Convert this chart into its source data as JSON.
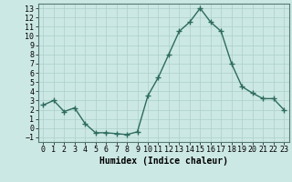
{
  "x": [
    0,
    1,
    2,
    3,
    4,
    5,
    6,
    7,
    8,
    9,
    10,
    11,
    12,
    13,
    14,
    15,
    16,
    17,
    18,
    19,
    20,
    21,
    22,
    23
  ],
  "y": [
    2.5,
    3.0,
    1.8,
    2.2,
    0.5,
    -0.5,
    -0.5,
    -0.6,
    -0.7,
    -0.4,
    3.5,
    5.5,
    8.0,
    10.5,
    11.5,
    13.0,
    11.5,
    10.5,
    7.0,
    4.5,
    3.8,
    3.2,
    3.2,
    2.0
  ],
  "line_color": "#2d6b5e",
  "marker": "+",
  "markersize": 4,
  "linewidth": 1.0,
  "markeredgewidth": 1.0,
  "bg_color": "#cce8e4",
  "grid_color": "#aacfca",
  "xlabel": "Humidex (Indice chaleur)",
  "xlabel_fontsize": 7,
  "tick_fontsize": 6,
  "xlim": [
    -0.5,
    23.5
  ],
  "ylim": [
    -1.5,
    13.5
  ],
  "yticks": [
    -1,
    0,
    1,
    2,
    3,
    4,
    5,
    6,
    7,
    8,
    9,
    10,
    11,
    12,
    13
  ],
  "xticks": [
    0,
    1,
    2,
    3,
    4,
    5,
    6,
    7,
    8,
    9,
    10,
    11,
    12,
    13,
    14,
    15,
    16,
    17,
    18,
    19,
    20,
    21,
    22,
    23
  ]
}
